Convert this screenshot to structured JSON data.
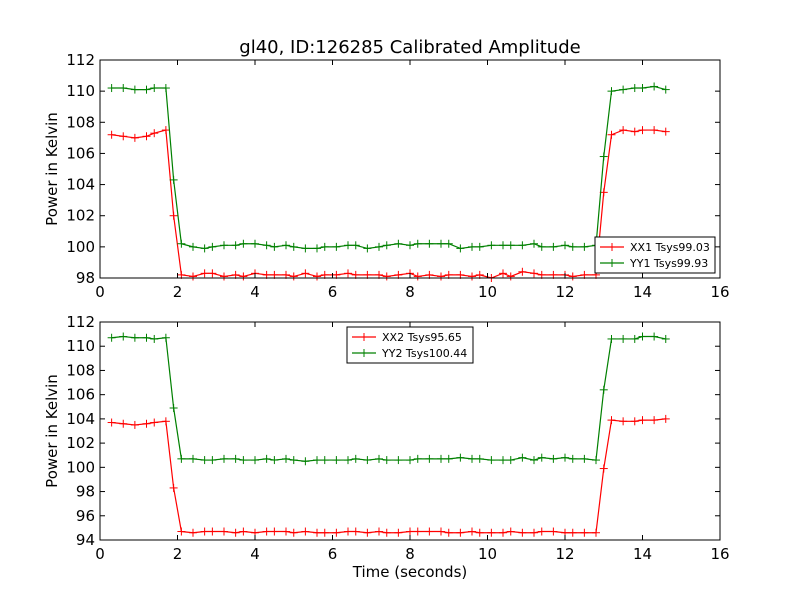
{
  "title": "gl40, ID:126285 Calibrated Amplitude",
  "chart_data": [
    {
      "type": "line",
      "xlabel": "",
      "ylabel": "Power in Kelvin",
      "xlim": [
        0,
        16
      ],
      "ylim": [
        98,
        112
      ],
      "xticks": [
        0,
        2,
        4,
        6,
        8,
        10,
        12,
        14,
        16
      ],
      "yticks": [
        98,
        100,
        102,
        104,
        106,
        108,
        110,
        112
      ],
      "grid": false,
      "legend_position": "lower-right",
      "x": [
        0.3,
        0.6,
        0.9,
        1.2,
        1.4,
        1.7,
        1.9,
        2.1,
        2.4,
        2.7,
        2.9,
        3.2,
        3.5,
        3.7,
        4.0,
        4.3,
        4.5,
        4.8,
        5.0,
        5.3,
        5.6,
        5.8,
        6.1,
        6.4,
        6.6,
        6.9,
        7.2,
        7.4,
        7.7,
        8.0,
        8.2,
        8.5,
        8.8,
        9.0,
        9.3,
        9.6,
        9.8,
        10.1,
        10.4,
        10.6,
        10.9,
        11.2,
        11.4,
        11.7,
        12.0,
        12.2,
        12.5,
        12.8,
        13.0,
        13.2,
        13.5,
        13.8,
        14.0,
        14.3,
        14.6
      ],
      "series": [
        {
          "name": "XX1 Tsys99.03",
          "color": "#ff0000",
          "values": [
            107.2,
            107.1,
            107.0,
            107.1,
            107.3,
            107.5,
            102.0,
            98.2,
            98.1,
            98.3,
            98.3,
            98.1,
            98.2,
            98.1,
            98.3,
            98.2,
            98.2,
            98.2,
            98.1,
            98.3,
            98.1,
            98.2,
            98.2,
            98.3,
            98.2,
            98.2,
            98.2,
            98.1,
            98.2,
            98.3,
            98.1,
            98.2,
            98.1,
            98.2,
            98.2,
            98.1,
            98.2,
            98.0,
            98.3,
            98.1,
            98.4,
            98.3,
            98.2,
            98.2,
            98.2,
            98.1,
            98.2,
            98.2,
            103.5,
            107.2,
            107.5,
            107.4,
            107.5,
            107.5,
            107.4
          ]
        },
        {
          "name": "YY1 Tsys99.93",
          "color": "#008000",
          "values": [
            110.2,
            110.2,
            110.1,
            110.1,
            110.2,
            110.2,
            104.3,
            100.2,
            100.0,
            99.9,
            100.0,
            100.1,
            100.1,
            100.2,
            100.2,
            100.1,
            100.0,
            100.1,
            100.0,
            99.9,
            99.9,
            100.0,
            100.0,
            100.1,
            100.1,
            99.9,
            100.0,
            100.1,
            100.2,
            100.1,
            100.2,
            100.2,
            100.2,
            100.2,
            99.9,
            100.0,
            100.0,
            100.1,
            100.1,
            100.1,
            100.1,
            100.2,
            100.0,
            100.0,
            100.1,
            100.0,
            100.0,
            100.1,
            105.8,
            110.0,
            110.1,
            110.2,
            110.2,
            110.3,
            110.1
          ]
        }
      ]
    },
    {
      "type": "line",
      "xlabel": "Time (seconds)",
      "ylabel": "Power in Kelvin",
      "xlim": [
        0,
        16
      ],
      "ylim": [
        94,
        112
      ],
      "xticks": [
        0,
        2,
        4,
        6,
        8,
        10,
        12,
        14,
        16
      ],
      "yticks": [
        94,
        96,
        98,
        100,
        102,
        104,
        106,
        108,
        110,
        112
      ],
      "grid": false,
      "legend_position": "top-center",
      "x": [
        0.3,
        0.6,
        0.9,
        1.2,
        1.4,
        1.7,
        1.9,
        2.1,
        2.4,
        2.7,
        2.9,
        3.2,
        3.5,
        3.7,
        4.0,
        4.3,
        4.5,
        4.8,
        5.0,
        5.3,
        5.6,
        5.8,
        6.1,
        6.4,
        6.6,
        6.9,
        7.2,
        7.4,
        7.7,
        8.0,
        8.2,
        8.5,
        8.8,
        9.0,
        9.3,
        9.6,
        9.8,
        10.1,
        10.4,
        10.6,
        10.9,
        11.2,
        11.4,
        11.7,
        12.0,
        12.2,
        12.5,
        12.8,
        13.0,
        13.2,
        13.5,
        13.8,
        14.0,
        14.3,
        14.6
      ],
      "series": [
        {
          "name": "XX2 Tsys95.65",
          "color": "#ff0000",
          "values": [
            103.7,
            103.6,
            103.5,
            103.6,
            103.7,
            103.8,
            98.3,
            94.7,
            94.6,
            94.7,
            94.7,
            94.7,
            94.6,
            94.7,
            94.6,
            94.7,
            94.7,
            94.7,
            94.6,
            94.7,
            94.6,
            94.6,
            94.6,
            94.7,
            94.7,
            94.6,
            94.7,
            94.6,
            94.6,
            94.7,
            94.7,
            94.7,
            94.7,
            94.6,
            94.6,
            94.7,
            94.6,
            94.6,
            94.6,
            94.7,
            94.6,
            94.6,
            94.7,
            94.7,
            94.6,
            94.6,
            94.6,
            94.6,
            99.9,
            103.9,
            103.8,
            103.8,
            103.9,
            103.9,
            104.0
          ]
        },
        {
          "name": "YY2 Tsys100.44",
          "color": "#008000",
          "values": [
            110.7,
            110.8,
            110.7,
            110.7,
            110.6,
            110.7,
            104.9,
            100.7,
            100.7,
            100.6,
            100.6,
            100.7,
            100.7,
            100.6,
            100.6,
            100.7,
            100.6,
            100.7,
            100.6,
            100.5,
            100.6,
            100.6,
            100.6,
            100.6,
            100.7,
            100.6,
            100.7,
            100.6,
            100.6,
            100.6,
            100.7,
            100.7,
            100.7,
            100.7,
            100.8,
            100.7,
            100.7,
            100.6,
            100.6,
            100.6,
            100.8,
            100.6,
            100.8,
            100.7,
            100.8,
            100.7,
            100.7,
            100.6,
            106.4,
            110.6,
            110.6,
            110.6,
            110.8,
            110.8,
            110.6
          ]
        }
      ]
    }
  ]
}
